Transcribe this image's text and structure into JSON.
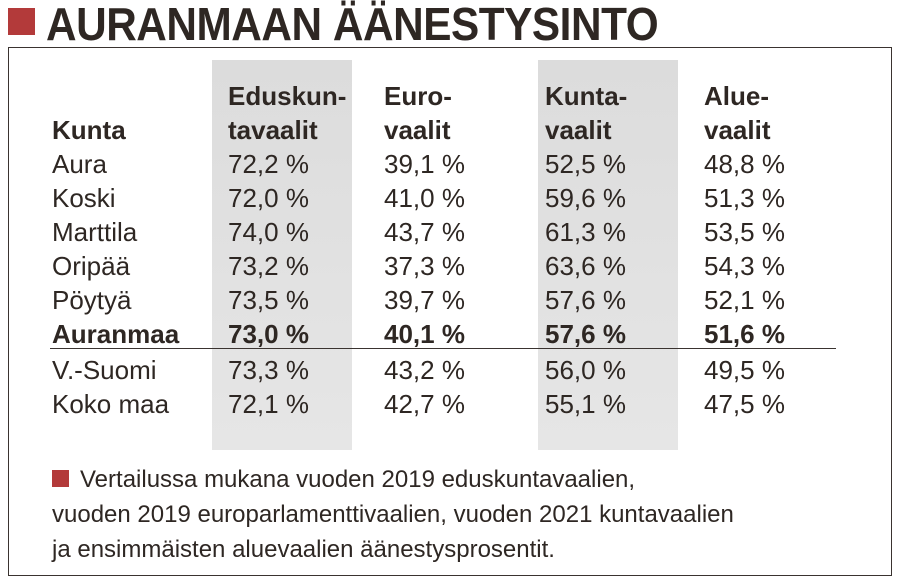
{
  "title": "AURANMAAN ÄÄNESTYSINTO",
  "headers": {
    "kunta": "Kunta",
    "eduskunta_1": "Eduskun-",
    "eduskunta_2": "tavaalit",
    "euro_1": "Euro-",
    "euro_2": "vaalit",
    "kunta_1": "Kunta-",
    "kunta_2": "vaalit",
    "alue_1": "Alue-",
    "alue_2": "vaalit"
  },
  "rows": [
    {
      "name": "Aura",
      "eduskunta": "72,2 %",
      "euro": "39,1 %",
      "kunta": "52,5 %",
      "alue": "48,8 %"
    },
    {
      "name": "Koski",
      "eduskunta": "72,0 %",
      "euro": "41,0 %",
      "kunta": "59,6 %",
      "alue": "51,3 %"
    },
    {
      "name": "Marttila",
      "eduskunta": "74,0 %",
      "euro": "43,7 %",
      "kunta": "61,3 %",
      "alue": "53,5 %"
    },
    {
      "name": "Oripää",
      "eduskunta": "73,2 %",
      "euro": "37,3 %",
      "kunta": "63,6 %",
      "alue": "54,3 %"
    },
    {
      "name": "Pöytyä",
      "eduskunta": "73,5 %",
      "euro": "39,7 %",
      "kunta": "57,6 %",
      "alue": "52,1 %"
    },
    {
      "name": "Auranmaa",
      "eduskunta": "73,0 %",
      "euro": "40,1 %",
      "kunta": "57,6 %",
      "alue": "51,6 %"
    },
    {
      "name": "V.-Suomi",
      "eduskunta": "73,3 %",
      "euro": "43,2 %",
      "kunta": "56,0 %",
      "alue": "49,5 %"
    },
    {
      "name": "Koko maa",
      "eduskunta": "72,1 %",
      "euro": "42,7 %",
      "kunta": "55,1 %",
      "alue": "47,5 %"
    }
  ],
  "note": {
    "line1": "Vertailussa mukana vuoden 2019 eduskuntavaalien,",
    "line2": "vuoden 2019 europarlamenttivaalien, vuoden 2021 kuntavaalien",
    "line3": "ja ensimmäisten aluevaalien äänestysprosentit."
  },
  "colors": {
    "accent": "#b33a3a",
    "text": "#2e2723",
    "column_shade": "#dcdcdc"
  }
}
